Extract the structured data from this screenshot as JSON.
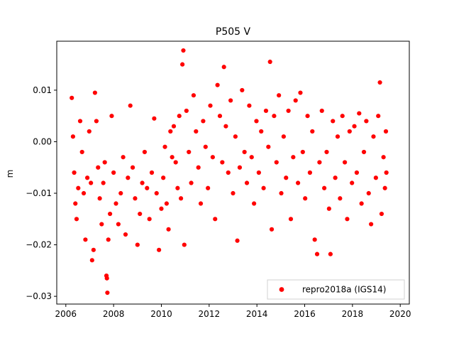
{
  "chart_data": {
    "type": "scatter",
    "title": "P505 V",
    "xlabel": "",
    "ylabel": "m",
    "xlim": [
      2005.62,
      2020.38
    ],
    "ylim": [
      -0.0315,
      0.0195
    ],
    "xticks": [
      2006,
      2008,
      2010,
      2012,
      2014,
      2016,
      2018,
      2020
    ],
    "xtick_labels": [
      "2006",
      "2008",
      "2010",
      "2012",
      "2014",
      "2016",
      "2018",
      "2020"
    ],
    "yticks": [
      -0.03,
      -0.02,
      -0.01,
      0.0,
      0.01
    ],
    "ytick_labels": [
      "−0.03",
      "−0.02",
      "−0.01",
      "0.00",
      "0.01"
    ],
    "grid": false,
    "legend": {
      "placement": "lower-right",
      "entries": [
        "repro2018a (IGS14)"
      ]
    },
    "series": [
      {
        "name": "repro2018a (IGS14)",
        "color": "#ff0000",
        "marker": "circle",
        "points": [
          [
            2006.25,
            0.0085
          ],
          [
            2006.3,
            0.001
          ],
          [
            2006.35,
            -0.006
          ],
          [
            2006.4,
            -0.012
          ],
          [
            2006.45,
            -0.015
          ],
          [
            2006.52,
            -0.009
          ],
          [
            2006.6,
            0.004
          ],
          [
            2006.68,
            -0.002
          ],
          [
            2006.75,
            -0.01
          ],
          [
            2006.82,
            -0.019
          ],
          [
            2006.9,
            -0.007
          ],
          [
            2006.98,
            0.002
          ],
          [
            2007.05,
            -0.008
          ],
          [
            2007.1,
            -0.023
          ],
          [
            2007.16,
            -0.021
          ],
          [
            2007.22,
            0.0095
          ],
          [
            2007.28,
            0.004
          ],
          [
            2007.35,
            -0.005
          ],
          [
            2007.42,
            -0.011
          ],
          [
            2007.5,
            -0.016
          ],
          [
            2007.57,
            -0.008
          ],
          [
            2007.63,
            -0.004
          ],
          [
            2007.7,
            -0.026
          ],
          [
            2007.72,
            -0.0265
          ],
          [
            2007.74,
            -0.0293
          ],
          [
            2007.78,
            -0.019
          ],
          [
            2007.85,
            -0.014
          ],
          [
            2007.92,
            0.005
          ],
          [
            2008.0,
            -0.006
          ],
          [
            2008.1,
            -0.012
          ],
          [
            2008.2,
            -0.016
          ],
          [
            2008.3,
            -0.01
          ],
          [
            2008.4,
            -0.003
          ],
          [
            2008.5,
            -0.018
          ],
          [
            2008.6,
            -0.007
          ],
          [
            2008.7,
            0.007
          ],
          [
            2008.8,
            -0.005
          ],
          [
            2008.9,
            -0.011
          ],
          [
            2009.0,
            -0.02
          ],
          [
            2009.1,
            -0.014
          ],
          [
            2009.2,
            -0.008
          ],
          [
            2009.3,
            -0.002
          ],
          [
            2009.4,
            -0.009
          ],
          [
            2009.5,
            -0.015
          ],
          [
            2009.6,
            -0.006
          ],
          [
            2009.7,
            0.0045
          ],
          [
            2009.8,
            -0.01
          ],
          [
            2009.9,
            -0.021
          ],
          [
            2010.0,
            -0.013
          ],
          [
            2010.08,
            -0.007
          ],
          [
            2010.15,
            -0.001
          ],
          [
            2010.22,
            -0.012
          ],
          [
            2010.3,
            -0.017
          ],
          [
            2010.38,
            0.002
          ],
          [
            2010.45,
            -0.003
          ],
          [
            2010.52,
            0.003
          ],
          [
            2010.6,
            -0.004
          ],
          [
            2010.68,
            -0.009
          ],
          [
            2010.75,
            0.005
          ],
          [
            2010.82,
            -0.011
          ],
          [
            2010.88,
            0.015
          ],
          [
            2010.92,
            0.0177
          ],
          [
            2010.96,
            -0.02
          ],
          [
            2011.05,
            0.006
          ],
          [
            2011.15,
            -0.002
          ],
          [
            2011.25,
            -0.008
          ],
          [
            2011.35,
            0.009
          ],
          [
            2011.45,
            0.002
          ],
          [
            2011.55,
            -0.005
          ],
          [
            2011.65,
            -0.012
          ],
          [
            2011.75,
            0.004
          ],
          [
            2011.85,
            -0.001
          ],
          [
            2011.95,
            -0.009
          ],
          [
            2012.05,
            0.007
          ],
          [
            2012.15,
            -0.003
          ],
          [
            2012.25,
            -0.015
          ],
          [
            2012.35,
            0.011
          ],
          [
            2012.45,
            0.005
          ],
          [
            2012.55,
            -0.004
          ],
          [
            2012.62,
            0.0145
          ],
          [
            2012.7,
            0.003
          ],
          [
            2012.8,
            -0.006
          ],
          [
            2012.9,
            0.008
          ],
          [
            2013.0,
            -0.01
          ],
          [
            2013.1,
            0.001
          ],
          [
            2013.18,
            -0.0192
          ],
          [
            2013.28,
            -0.005
          ],
          [
            2013.38,
            0.01
          ],
          [
            2013.48,
            -0.002
          ],
          [
            2013.58,
            -0.008
          ],
          [
            2013.68,
            0.007
          ],
          [
            2013.78,
            -0.003
          ],
          [
            2013.88,
            -0.012
          ],
          [
            2013.98,
            0.004
          ],
          [
            2014.08,
            -0.006
          ],
          [
            2014.18,
            0.002
          ],
          [
            2014.28,
            -0.009
          ],
          [
            2014.38,
            0.006
          ],
          [
            2014.48,
            -0.001
          ],
          [
            2014.55,
            0.0155
          ],
          [
            2014.62,
            -0.017
          ],
          [
            2014.72,
            0.005
          ],
          [
            2014.82,
            -0.004
          ],
          [
            2014.92,
            0.009
          ],
          [
            2015.02,
            -0.01
          ],
          [
            2015.12,
            0.001
          ],
          [
            2015.22,
            -0.007
          ],
          [
            2015.32,
            0.006
          ],
          [
            2015.42,
            -0.015
          ],
          [
            2015.52,
            -0.003
          ],
          [
            2015.62,
            0.008
          ],
          [
            2015.72,
            -0.008
          ],
          [
            2015.82,
            0.0095
          ],
          [
            2015.92,
            -0.002
          ],
          [
            2016.02,
            -0.011
          ],
          [
            2016.12,
            0.005
          ],
          [
            2016.22,
            -0.006
          ],
          [
            2016.32,
            0.002
          ],
          [
            2016.42,
            -0.019
          ],
          [
            2016.52,
            -0.0218
          ],
          [
            2016.62,
            -0.004
          ],
          [
            2016.72,
            0.006
          ],
          [
            2016.82,
            -0.009
          ],
          [
            2016.92,
            -0.002
          ],
          [
            2017.02,
            -0.013
          ],
          [
            2017.08,
            -0.0218
          ],
          [
            2017.18,
            0.004
          ],
          [
            2017.28,
            -0.007
          ],
          [
            2017.38,
            0.001
          ],
          [
            2017.48,
            -0.011
          ],
          [
            2017.58,
            0.005
          ],
          [
            2017.68,
            -0.004
          ],
          [
            2017.78,
            -0.015
          ],
          [
            2017.88,
            0.002
          ],
          [
            2017.98,
            -0.008
          ],
          [
            2018.08,
            0.003
          ],
          [
            2018.18,
            -0.006
          ],
          [
            2018.28,
            0.0055
          ],
          [
            2018.38,
            -0.012
          ],
          [
            2018.48,
            -0.002
          ],
          [
            2018.58,
            0.004
          ],
          [
            2018.68,
            -0.01
          ],
          [
            2018.78,
            -0.016
          ],
          [
            2018.88,
            0.001
          ],
          [
            2018.98,
            -0.007
          ],
          [
            2019.08,
            0.005
          ],
          [
            2019.15,
            0.0115
          ],
          [
            2019.22,
            -0.014
          ],
          [
            2019.3,
            -0.003
          ],
          [
            2019.36,
            -0.009
          ],
          [
            2019.4,
            0.002
          ],
          [
            2019.42,
            -0.006
          ]
        ]
      }
    ]
  }
}
